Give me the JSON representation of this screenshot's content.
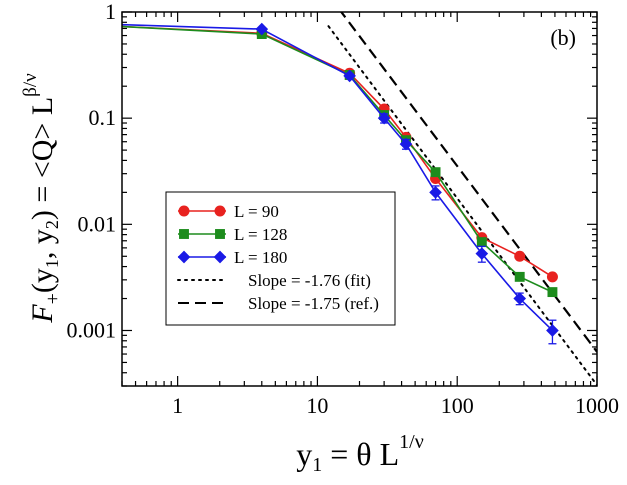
{
  "chart_data": {
    "type": "line",
    "panel_label": "(b)",
    "xscale": "log",
    "yscale": "log",
    "xlim": [
      0.4,
      1000
    ],
    "ylim": [
      0.0003,
      1
    ],
    "x_ticks": [
      {
        "value": 1,
        "label": "1"
      },
      {
        "value": 10,
        "label": "10"
      },
      {
        "value": 100,
        "label": "100"
      },
      {
        "value": 1000,
        "label": "1000"
      }
    ],
    "y_ticks": [
      {
        "value": 1,
        "label": "1"
      },
      {
        "value": 0.1,
        "label": "0.1"
      },
      {
        "value": 0.01,
        "label": "0.01"
      },
      {
        "value": 0.001,
        "label": "0.001"
      }
    ],
    "xlabel": {
      "main": "y",
      "sub": "1",
      "rest": " = θ L",
      "sup": "1/ν"
    },
    "ylabel": {
      "p1": "F",
      "sub1": "+",
      "p2": "(y",
      "sub2": "1",
      "p3": ", y",
      "sub3": "2",
      "p4": ") = <Q> L",
      "sup": "β/ν"
    },
    "legend_position": "center-left",
    "series": [
      {
        "name": "L = 90",
        "color": "#e8221f",
        "marker": "circle",
        "x": [
          0.4,
          4,
          17,
          30,
          43,
          70,
          150,
          280,
          480
        ],
        "y": [
          0.73,
          0.63,
          0.265,
          0.122,
          0.066,
          0.027,
          0.0075,
          0.005,
          0.0032
        ],
        "yerr": [
          0,
          0,
          0,
          0,
          0,
          0,
          0,
          0,
          0
        ]
      },
      {
        "name": "L = 128",
        "color": "#1d8c1d",
        "marker": "square",
        "x": [
          0.4,
          4,
          17,
          30,
          43,
          70,
          150,
          280,
          480
        ],
        "y": [
          0.73,
          0.62,
          0.255,
          0.107,
          0.062,
          0.031,
          0.0068,
          0.0032,
          0.0023
        ],
        "yerr": [
          0,
          0,
          0,
          0,
          0,
          0,
          0,
          0,
          0
        ]
      },
      {
        "name": "L = 180",
        "color": "#1a1ae6",
        "marker": "diamond",
        "x": [
          0.4,
          4,
          17,
          30,
          43,
          70,
          150,
          280,
          480
        ],
        "y": [
          0.76,
          0.69,
          0.25,
          0.1,
          0.057,
          0.02,
          0.0053,
          0.002,
          0.001
        ],
        "yerr": [
          0,
          0,
          0,
          0.01,
          0.006,
          0.003,
          0.0009,
          0.00025,
          0.00025
        ]
      }
    ],
    "reference_lines": [
      {
        "name": "Slope = -1.76 (fit)",
        "style": "dotted",
        "slope": -1.76,
        "x_range": [
          12,
          1000
        ],
        "anchor": {
          "x": 100,
          "y": 0.0176
        }
      },
      {
        "name": "Slope = -1.75 (ref.)",
        "style": "dashed",
        "slope": -1.75,
        "x_range": [
          12,
          1000
        ],
        "anchor": {
          "x": 100,
          "y": 0.0354
        }
      }
    ]
  }
}
